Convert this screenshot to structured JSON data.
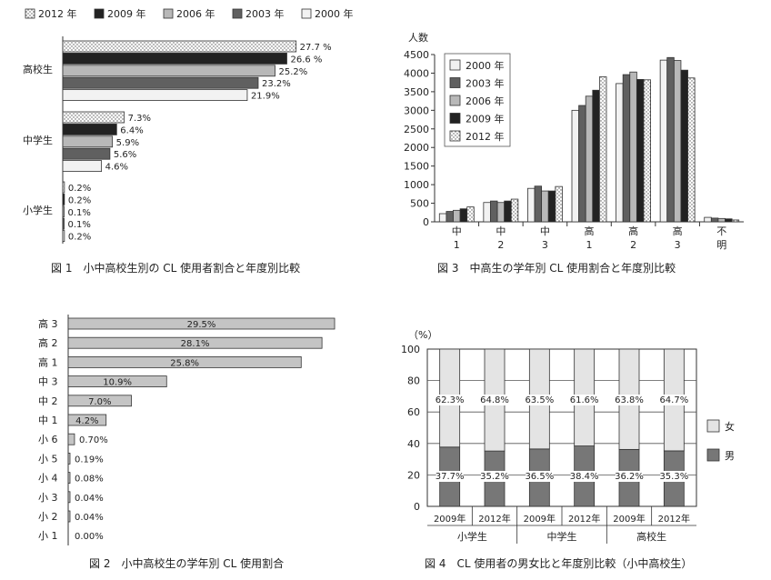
{
  "patterns": {
    "2012": "dots",
    "2009": "#222222",
    "2006": "#b8b8b8",
    "2003": "#606060",
    "2000": "#f2f2f2"
  },
  "chart_data": [
    {
      "id": "fig1",
      "type": "bar",
      "orientation": "horizontal",
      "title": "図 1　小中高校生別の CL 使用者割合と年度別比較",
      "legend": [
        "2012 年",
        "2009 年",
        "2006 年",
        "2003 年",
        "2000 年"
      ],
      "legend_placement": "top",
      "categories": [
        "高校生",
        "中学生",
        "小学生"
      ],
      "series": [
        {
          "name": "2012 年",
          "values": [
            27.7,
            7.3,
            0.2
          ],
          "labels": [
            "27.7 %",
            "7.3%",
            "0.2%"
          ]
        },
        {
          "name": "2009 年",
          "values": [
            26.6,
            6.4,
            0.2
          ],
          "labels": [
            "26.6 %",
            "6.4%",
            "0.2%"
          ]
        },
        {
          "name": "2006 年",
          "values": [
            25.2,
            5.9,
            0.1
          ],
          "labels": [
            "25.2%",
            "5.9%",
            "0.1%"
          ]
        },
        {
          "name": "2003 年",
          "values": [
            23.2,
            5.6,
            0.1
          ],
          "labels": [
            "23.2%",
            "5.6%",
            "0.1%"
          ]
        },
        {
          "name": "2000 年",
          "values": [
            21.9,
            4.6,
            0.2
          ],
          "labels": [
            "21.9%",
            "4.6%",
            "0.2%"
          ]
        }
      ],
      "xlim": [
        0,
        30
      ]
    },
    {
      "id": "fig3",
      "type": "bar",
      "title": "図 3　中高生の学年別 CL 使用割合と年度別比較",
      "ylabel": "人数",
      "ylim": [
        0,
        4500
      ],
      "yticks": [
        "0",
        "500",
        "1000",
        "1500",
        "2000",
        "2500",
        "3000",
        "3500",
        "4000",
        "4500"
      ],
      "categories": [
        [
          "中",
          "1"
        ],
        [
          "中",
          "2"
        ],
        [
          "中",
          "3"
        ],
        [
          "高",
          "1"
        ],
        [
          "高",
          "2"
        ],
        [
          "高",
          "3"
        ],
        [
          "不",
          "明"
        ]
      ],
      "legend": [
        "2000 年",
        "2003 年",
        "2006 年",
        "2009 年",
        "2012 年"
      ],
      "legend_placement": "top-left",
      "series": [
        {
          "name": "2000 年",
          "values": [
            220,
            520,
            900,
            3000,
            3720,
            4350,
            120
          ]
        },
        {
          "name": "2003 年",
          "values": [
            280,
            560,
            960,
            3130,
            3960,
            4420,
            100
          ]
        },
        {
          "name": "2006 年",
          "values": [
            310,
            520,
            830,
            3380,
            4030,
            4340,
            90
          ]
        },
        {
          "name": "2009 年",
          "values": [
            350,
            560,
            830,
            3540,
            3830,
            4080,
            80
          ]
        },
        {
          "name": "2012 年",
          "values": [
            400,
            610,
            950,
            3900,
            3820,
            3870,
            50
          ]
        }
      ]
    },
    {
      "id": "fig2",
      "type": "bar",
      "orientation": "horizontal",
      "title": "図 2　小中高校生の学年別 CL 使用割合",
      "categories": [
        "高 3",
        "高 2",
        "高 1",
        "中 3",
        "中 2",
        "中 1",
        "小 6",
        "小 5",
        "小 4",
        "小 3",
        "小 2",
        "小 1"
      ],
      "values": [
        29.5,
        28.1,
        25.8,
        10.9,
        7.0,
        4.2,
        0.7,
        0.19,
        0.08,
        0.04,
        0.04,
        0.0
      ],
      "labels": [
        "29.5%",
        "28.1%",
        "25.8%",
        "10.9%",
        "7.0%",
        "4.2%",
        "0.70%",
        "0.19%",
        "0.08%",
        "0.04%",
        "0.04%",
        "0.00%"
      ],
      "xlim": [
        0,
        30
      ]
    },
    {
      "id": "fig4",
      "type": "bar",
      "stacked": true,
      "title": "図 4　CL 使用者の男女比と年度別比較（小中高校生）",
      "ylabel": "（%）",
      "ylim": [
        0,
        100
      ],
      "yticks": [
        "0",
        "20",
        "40",
        "60",
        "80",
        "100"
      ],
      "categories": [
        "2009年",
        "2012年",
        "2009年",
        "2012年",
        "2009年",
        "2012年"
      ],
      "groups": [
        "小学生",
        "中学生",
        "高校生"
      ],
      "legend": [
        "女",
        "男"
      ],
      "legend_placement": "right",
      "series": [
        {
          "name": "男",
          "values": [
            37.7,
            35.2,
            36.5,
            38.4,
            36.2,
            35.3
          ],
          "labels": [
            "37.7%",
            "35.2%",
            "36.5%",
            "38.4%",
            "36.2%",
            "35.3%"
          ]
        },
        {
          "name": "女",
          "values": [
            62.3,
            64.8,
            63.5,
            61.6,
            63.8,
            64.7
          ],
          "labels": [
            "62.3%",
            "64.8%",
            "63.5%",
            "61.6%",
            "63.8%",
            "64.7%"
          ]
        }
      ]
    }
  ]
}
